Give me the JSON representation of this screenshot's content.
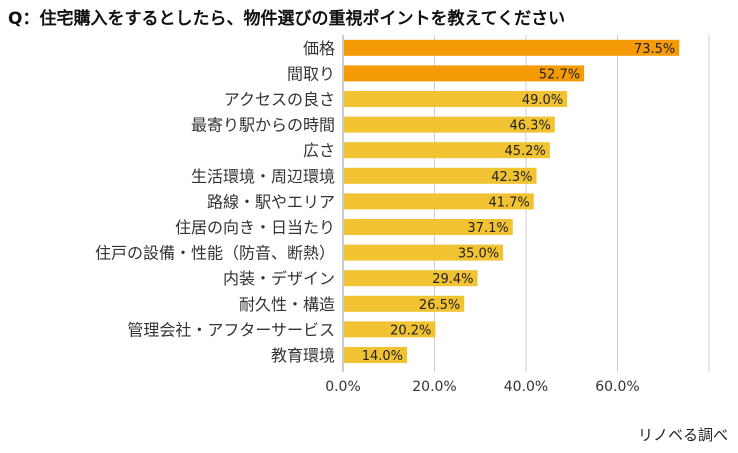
{
  "chart_data": {
    "type": "bar",
    "orientation": "horizontal",
    "title": "Q：住宅購入をするとしたら、物件選びの重視ポイントを教えてください",
    "categories": [
      "価格",
      "間取り",
      "アクセスの良さ",
      "最寄り駅からの時間",
      "広さ",
      "生活環境・周辺環境",
      "路線・駅やエリア",
      "住居の向き・日当たり",
      "住戸の設備・性能（防音、断熱）",
      "内装・デザイン",
      "耐久性・構造",
      "管理会社・アフターサービス",
      "教育環境"
    ],
    "values": [
      73.5,
      52.7,
      49.0,
      46.3,
      45.2,
      42.3,
      41.7,
      37.1,
      35.0,
      29.4,
      26.5,
      20.2,
      14.0
    ],
    "value_labels": [
      "73.5%",
      "52.7%",
      "49.0%",
      "46.3%",
      "45.2%",
      "42.3%",
      "41.7%",
      "37.1%",
      "35.0%",
      "29.4%",
      "26.5%",
      "20.2%",
      "14.0%"
    ],
    "highlight_count": 2,
    "xlim": [
      0,
      80
    ],
    "xticks": [
      0,
      20,
      40,
      60,
      80
    ],
    "xtick_labels": [
      "0.0%",
      "20.0%",
      "40.0%",
      "60.0%",
      ""
    ],
    "xlabel": "",
    "ylabel": "",
    "grid": true,
    "colors": {
      "highlight": "#f59b08",
      "normal": "#f1c232",
      "grid": "#cccccc",
      "axis": "#999999"
    }
  },
  "source": "リノベる調べ"
}
